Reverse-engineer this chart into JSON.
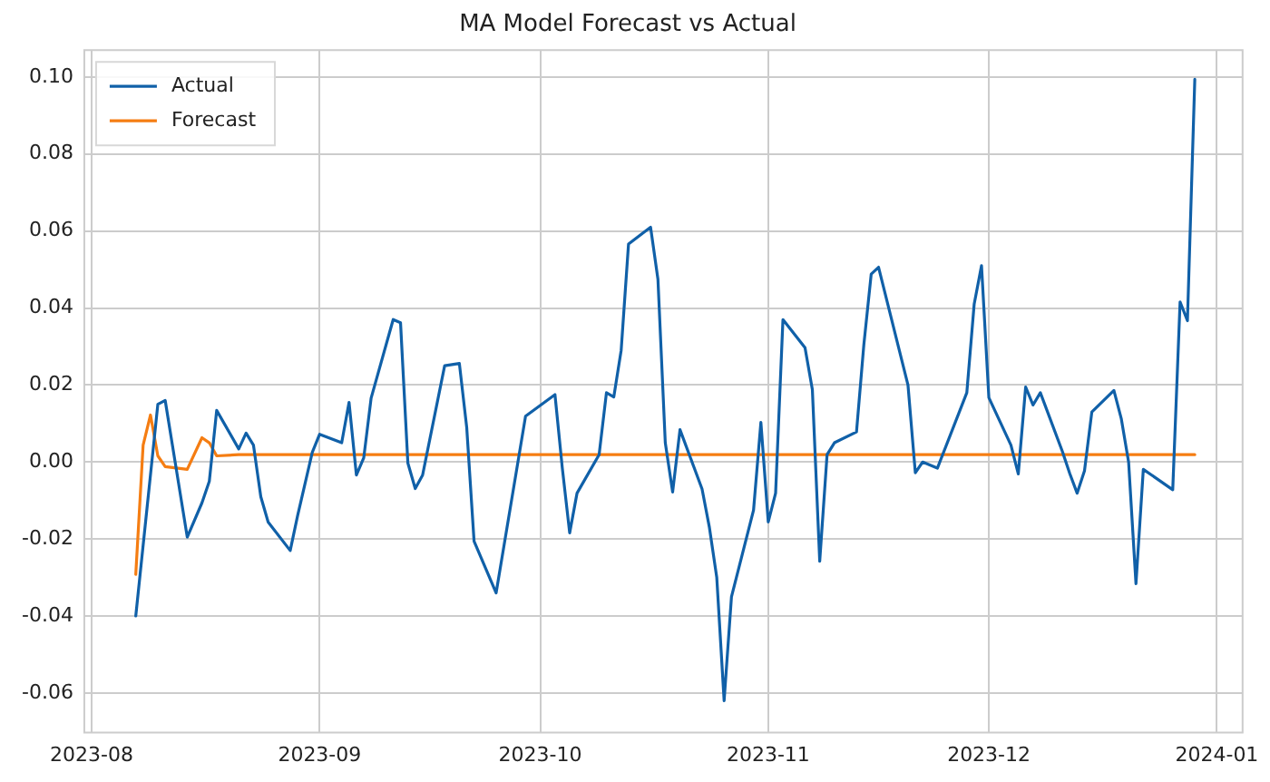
{
  "chart_data": {
    "type": "line",
    "title": "MA Model Forecast vs Actual",
    "xlim": [
      "2023-07-31",
      "2024-01-04T12:00"
    ],
    "xticks": [
      "2023-08",
      "2023-09",
      "2023-10",
      "2023-11",
      "2023-12",
      "2024-01"
    ],
    "ylim": [
      -0.0703,
      0.107
    ],
    "yticks": [
      {
        "value": -0.06,
        "label": "-0.06"
      },
      {
        "value": -0.04,
        "label": "-0.04"
      },
      {
        "value": -0.02,
        "label": "-0.02"
      },
      {
        "value": 0,
        "label": "0.00"
      },
      {
        "value": 0.02,
        "label": "0.02"
      },
      {
        "value": 0.04,
        "label": "0.04"
      },
      {
        "value": 0.06,
        "label": "0.06"
      },
      {
        "value": 0.08,
        "label": "0.08"
      },
      {
        "value": 0.1,
        "label": "0.10"
      }
    ],
    "grid": true,
    "legend": "top left",
    "marker": "none",
    "line_style": "solid",
    "series": [
      {
        "name": "Actual",
        "color": "#1060a8",
        "x": [
          "2023-08-07",
          "2023-08-10",
          "2023-08-11",
          "2023-08-14",
          "2023-08-16",
          "2023-08-17",
          "2023-08-18",
          "2023-08-21",
          "2023-08-22",
          "2023-08-23",
          "2023-08-24",
          "2023-08-25",
          "2023-08-28",
          "2023-08-29",
          "2023-08-31",
          "2023-09-01",
          "2023-09-04",
          "2023-09-05",
          "2023-09-06",
          "2023-09-07",
          "2023-09-08",
          "2023-09-11",
          "2023-09-12",
          "2023-09-13",
          "2023-09-14",
          "2023-09-15",
          "2023-09-18",
          "2023-09-20",
          "2023-09-21",
          "2023-09-22",
          "2023-09-25",
          "2023-09-29",
          "2023-10-03",
          "2023-10-04",
          "2023-10-05",
          "2023-10-06",
          "2023-10-09",
          "2023-10-10",
          "2023-10-11",
          "2023-10-12",
          "2023-10-13",
          "2023-10-16",
          "2023-10-17",
          "2023-10-18",
          "2023-10-19",
          "2023-10-20",
          "2023-10-23",
          "2023-10-24",
          "2023-10-25",
          "2023-10-26",
          "2023-10-27",
          "2023-10-30",
          "2023-10-31",
          "2023-11-01",
          "2023-11-02",
          "2023-11-03",
          "2023-11-06",
          "2023-11-07",
          "2023-11-08",
          "2023-11-09",
          "2023-11-10",
          "2023-11-13",
          "2023-11-14",
          "2023-11-15",
          "2023-11-16",
          "2023-11-20",
          "2023-11-21",
          "2023-11-22",
          "2023-11-24",
          "2023-11-28",
          "2023-11-29",
          "2023-11-30",
          "2023-12-01",
          "2023-12-04",
          "2023-12-05",
          "2023-12-06",
          "2023-12-07",
          "2023-12-08",
          "2023-12-11",
          "2023-12-12",
          "2023-12-13",
          "2023-12-14",
          "2023-12-15",
          "2023-12-18",
          "2023-12-19",
          "2023-12-20",
          "2023-12-21",
          "2023-12-22",
          "2023-12-26",
          "2023-12-27",
          "2023-12-28",
          "2023-12-29"
        ],
        "values": [
          -0.04,
          0.015,
          0.016,
          -0.0195,
          -0.0106,
          -0.005,
          0.0134,
          0.0034,
          0.0075,
          0.0044,
          -0.009,
          -0.0156,
          -0.023,
          -0.014,
          0.0025,
          0.0072,
          0.005,
          0.0155,
          -0.0034,
          0.0011,
          0.0166,
          0.037,
          0.0362,
          -0.0003,
          -0.0069,
          -0.0034,
          0.025,
          0.0256,
          0.009,
          -0.0206,
          -0.034,
          0.0119,
          0.0175,
          -0.0016,
          -0.0184,
          -0.0081,
          0.0019,
          0.018,
          0.0169,
          0.029,
          0.0566,
          0.061,
          0.0475,
          0.005,
          -0.0078,
          0.0084,
          -0.007,
          -0.017,
          -0.03,
          -0.062,
          -0.035,
          -0.0125,
          0.0103,
          -0.0156,
          -0.0081,
          0.037,
          0.0297,
          0.0188,
          -0.0258,
          0.0019,
          0.005,
          0.0078,
          0.0305,
          0.0488,
          0.0506,
          0.02,
          -0.0028,
          0,
          -0.0016,
          0.018,
          0.041,
          0.051,
          0.0167,
          0.0044,
          -0.0031,
          0.0195,
          0.0148,
          0.018,
          0.0027,
          -0.003,
          -0.0081,
          -0.0023,
          0.013,
          0.0186,
          0.0113,
          0,
          -0.0316,
          -0.0019,
          -0.0072,
          0.0416,
          0.0367,
          0.0994
        ]
      },
      {
        "name": "Forecast",
        "color": "#f57d12",
        "x": [
          "2023-08-07",
          "2023-08-08",
          "2023-08-09",
          "2023-08-10",
          "2023-08-11",
          "2023-08-14",
          "2023-08-16",
          "2023-08-17",
          "2023-08-18",
          "2023-08-21",
          "2023-12-29"
        ],
        "values": [
          -0.0292,
          0.0044,
          0.0122,
          0.0016,
          -0.0012,
          -0.0019,
          0.0063,
          0.005,
          0.0016,
          0.0019,
          0.0019
        ]
      }
    ]
  }
}
